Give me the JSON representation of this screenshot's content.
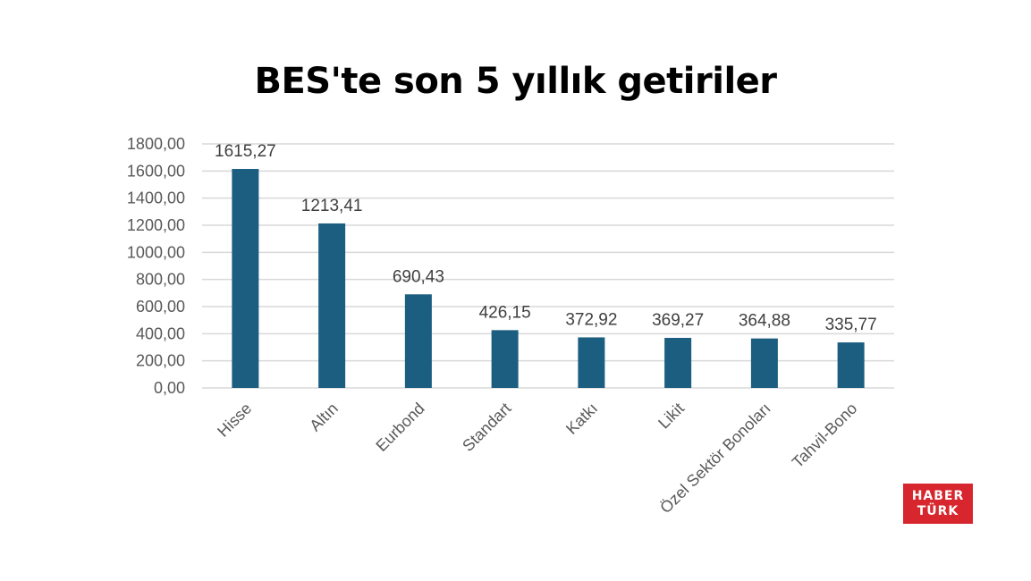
{
  "chart_data": {
    "type": "bar",
    "title": "BES'te son 5 yıllık getiriler",
    "categories": [
      "Hisse",
      "Altın",
      "Eurbond",
      "Standart",
      "Katkı",
      "Likit",
      "Özel Sektör Bonoları",
      "Tahvil-Bono"
    ],
    "values": [
      1615.27,
      1213.41,
      690.43,
      426.15,
      372.92,
      369.27,
      364.88,
      335.77
    ],
    "data_labels": [
      "1615,27",
      "1213,41",
      "690,43",
      "426,15",
      "372,92",
      "369,27",
      "364,88",
      "335,77"
    ],
    "ylim": [
      0,
      1800
    ],
    "y_ticks": [
      0,
      200,
      400,
      600,
      800,
      1000,
      1200,
      1400,
      1600,
      1800
    ],
    "y_tick_labels": [
      "0,00",
      "200,00",
      "400,00",
      "600,00",
      "800,00",
      "1000,00",
      "1200,00",
      "1400,00",
      "1600,00",
      "1800,00"
    ],
    "grid": true,
    "bar_color": "#1b5e80",
    "grid_color": "#d9d9d9"
  },
  "logo": {
    "line1": "HABER",
    "line2": "TÜRK",
    "color": "#d7262e"
  }
}
